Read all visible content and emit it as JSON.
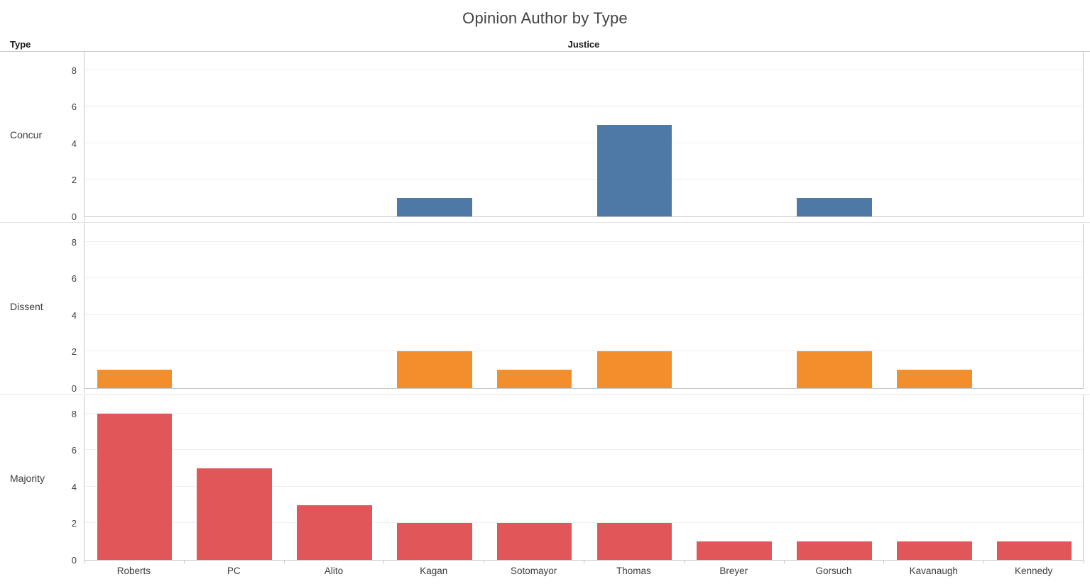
{
  "title": "Opinion Author by Type",
  "headers": {
    "row": "Type",
    "column": "Justice"
  },
  "colors": {
    "concur": "#4e79a7",
    "dissent": "#f28e2b",
    "majority": "#e15759",
    "axis_line": "#c9c9c9",
    "gridline": "#efefef",
    "text": "#3c3c3c"
  },
  "chart_data": {
    "type": "bar",
    "layout": "faceted-rows",
    "title": "Opinion Author by Type",
    "facet_field": "Type",
    "x_field": "Justice",
    "categories": [
      "Roberts",
      "PC",
      "Alito",
      "Kagan",
      "Sotomayor",
      "Thomas",
      "Breyer",
      "Gorsuch",
      "Kavanaugh",
      "Kennedy"
    ],
    "series": [
      {
        "name": "Concur",
        "color": "#4e79a7",
        "values": [
          0,
          0,
          0,
          1,
          0,
          5,
          0,
          1,
          0,
          0
        ]
      },
      {
        "name": "Dissent",
        "color": "#f28e2b",
        "values": [
          1,
          0,
          0,
          2,
          1,
          2,
          0,
          2,
          1,
          0
        ]
      },
      {
        "name": "Majority",
        "color": "#e15759",
        "values": [
          8,
          5,
          3,
          2,
          2,
          2,
          1,
          1,
          1,
          1
        ]
      }
    ],
    "y_ticks": [
      0,
      2,
      4,
      6,
      8
    ],
    "ylim": [
      0,
      9
    ],
    "grid": true,
    "legend_position": "none"
  }
}
